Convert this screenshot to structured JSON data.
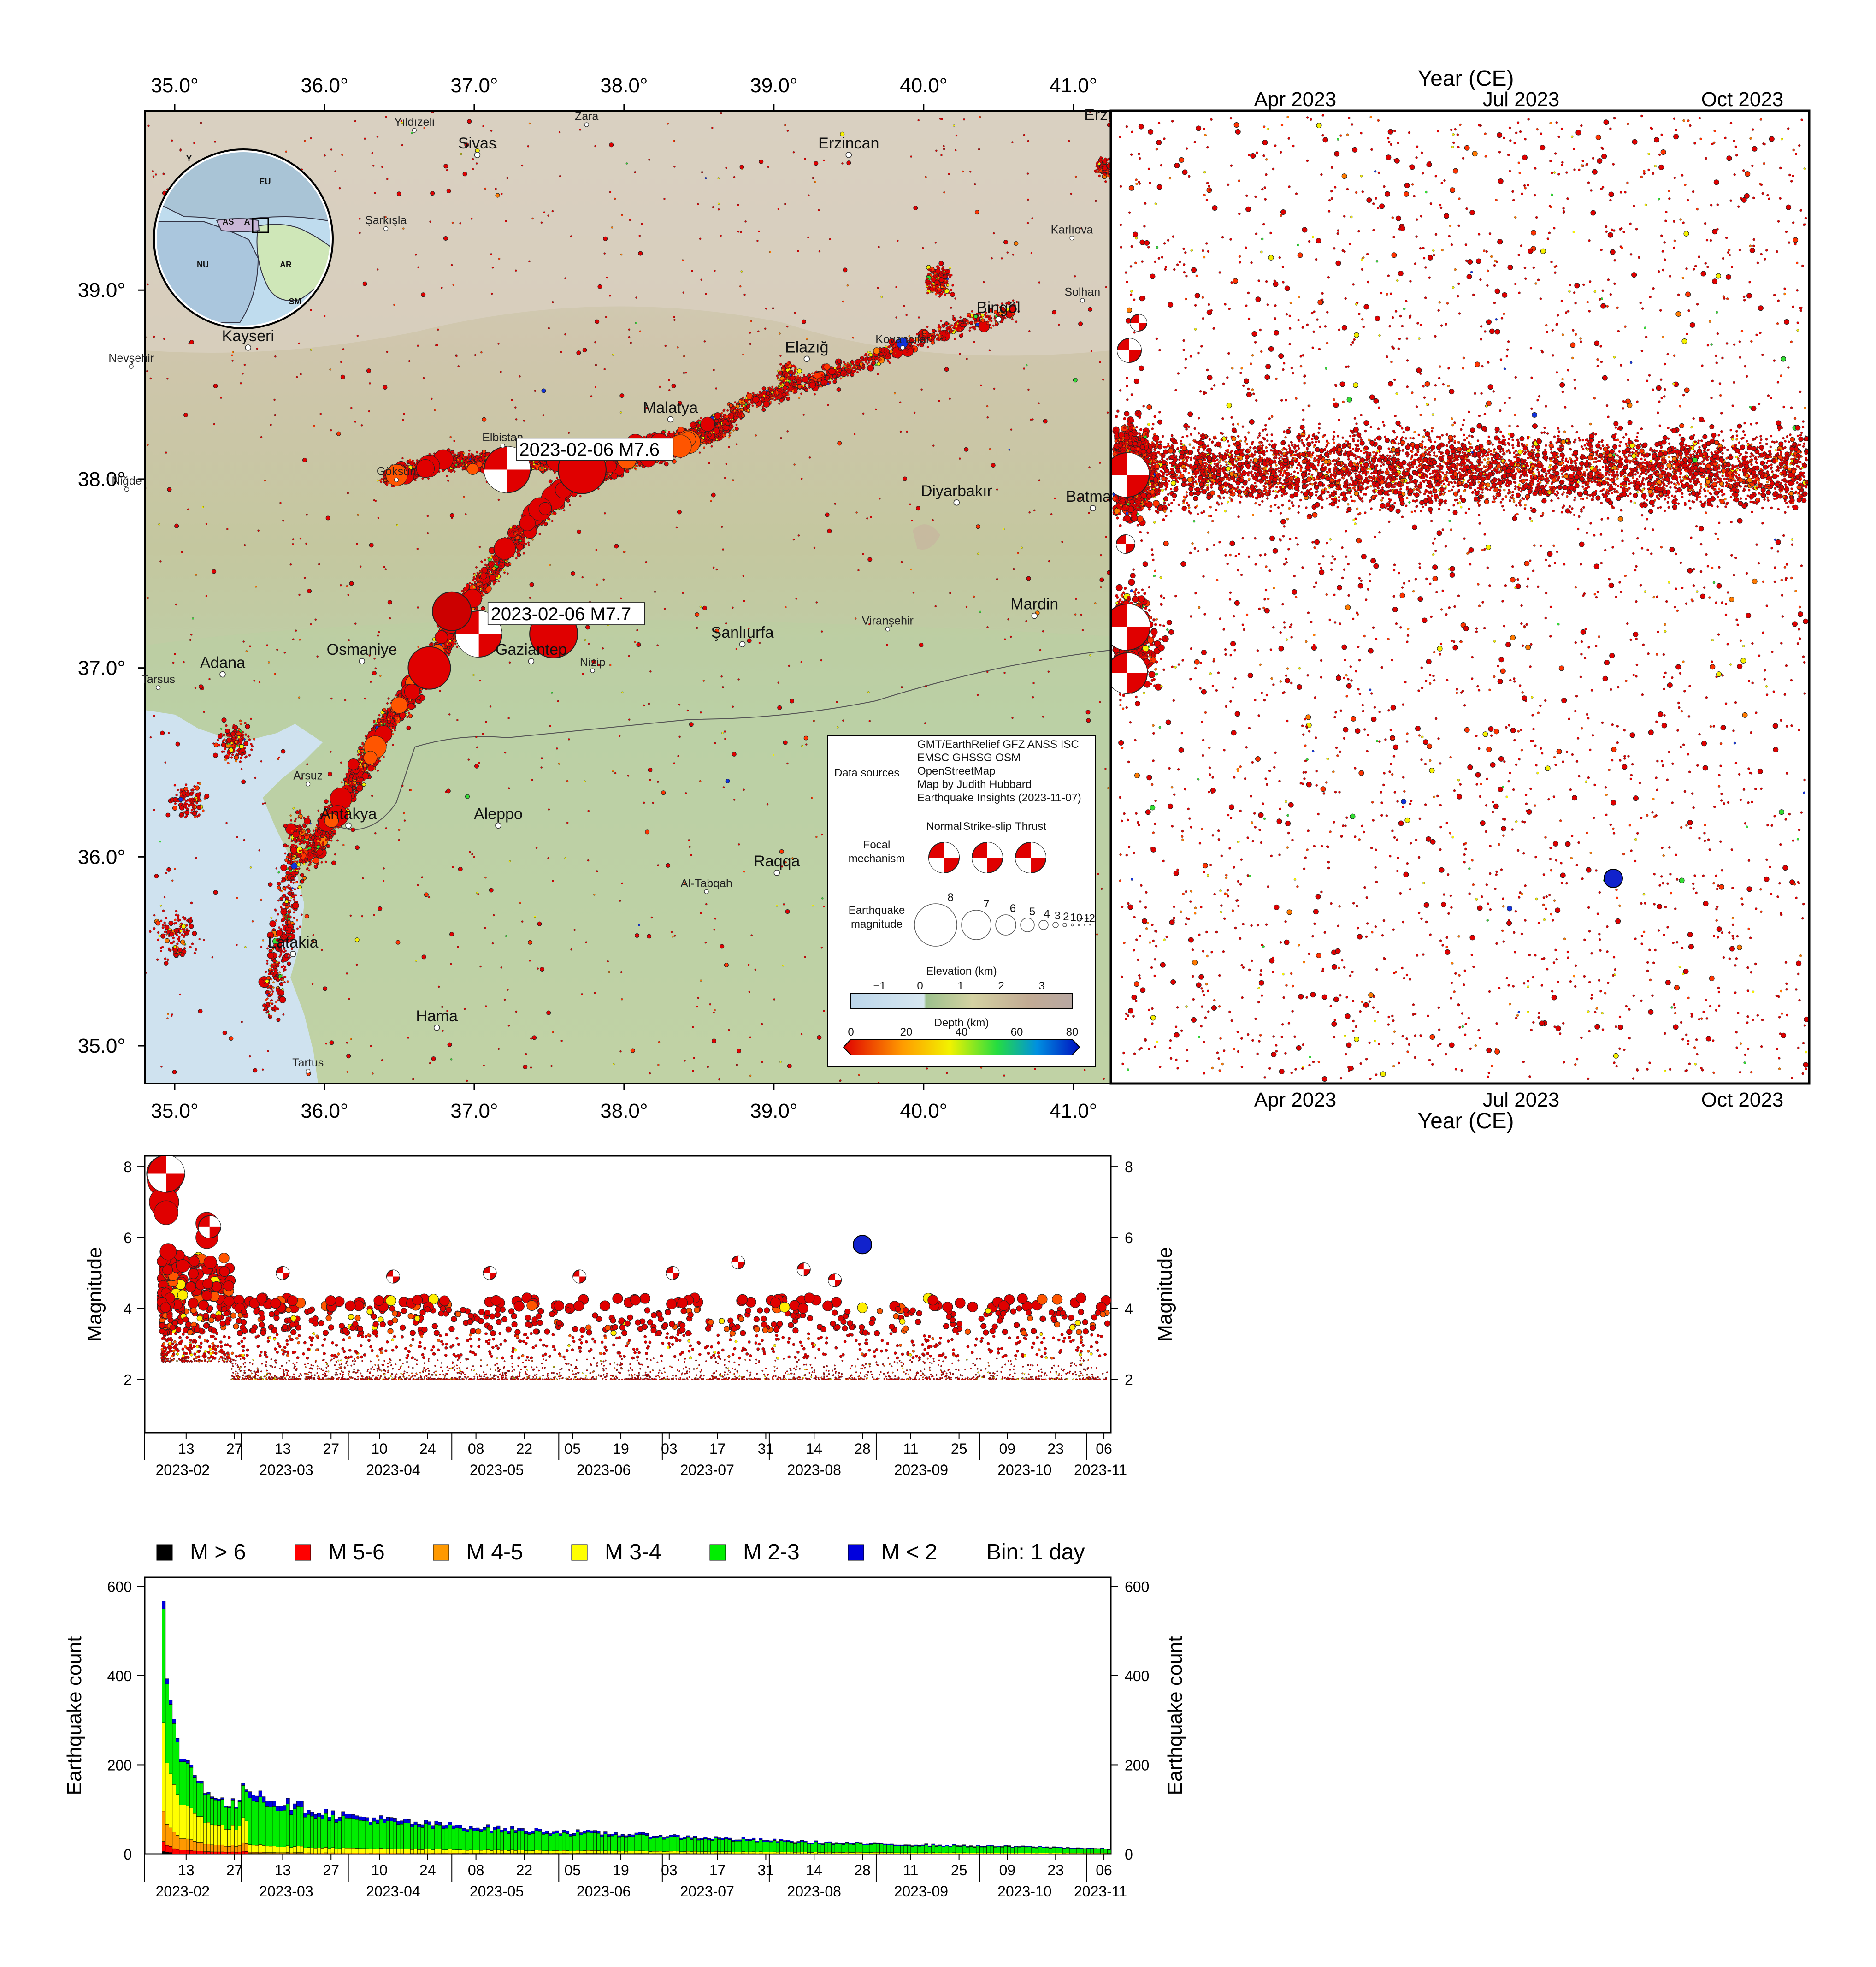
{
  "map": {
    "lon_ticks_top": [
      "35.0°",
      "36.0°",
      "37.0°",
      "38.0°",
      "39.0°",
      "40.0°",
      "41.0°"
    ],
    "lon_ticks_bottom": [
      "35.0°",
      "36.0°",
      "37.0°",
      "38.0°",
      "39.0°",
      "40.0°",
      "41.0°"
    ],
    "lat_ticks": [
      "39.0°",
      "38.0°",
      "37.0°",
      "36.0°",
      "35.0°"
    ],
    "lon_range": [
      34.8,
      41.25
    ],
    "lat_range": [
      34.8,
      39.95
    ],
    "mainshocks": [
      {
        "label": "2023-02-06 M7.6",
        "lon": 37.22,
        "lat": 38.05,
        "mag": 7.6
      },
      {
        "label": "2023-02-06 M7.7",
        "lon": 37.03,
        "lat": 37.18,
        "mag": 7.7
      }
    ],
    "cities_large": [
      {
        "name": "Sivas",
        "lon": 37.02,
        "lat": 39.75
      },
      {
        "name": "Erzincan",
        "lon": 39.5,
        "lat": 39.75
      },
      {
        "name": "Erzurum",
        "lon": 41.27,
        "lat": 39.9
      },
      {
        "name": "Kayseri",
        "lon": 35.49,
        "lat": 38.73
      },
      {
        "name": "Elazığ",
        "lon": 39.22,
        "lat": 38.67
      },
      {
        "name": "Bingöl",
        "lon": 40.5,
        "lat": 38.88
      },
      {
        "name": "Malatya",
        "lon": 38.31,
        "lat": 38.35
      },
      {
        "name": "Diyarbakır",
        "lon": 40.22,
        "lat": 37.91
      },
      {
        "name": "Batman",
        "lon": 41.13,
        "lat": 37.88
      },
      {
        "name": "Mardin",
        "lon": 40.74,
        "lat": 37.31
      },
      {
        "name": "Şanlıurfa",
        "lon": 38.79,
        "lat": 37.16
      },
      {
        "name": "Gaziantep",
        "lon": 37.38,
        "lat": 37.07
      },
      {
        "name": "Osmaniye",
        "lon": 36.25,
        "lat": 37.07
      },
      {
        "name": "Adana",
        "lon": 35.32,
        "lat": 37.0
      },
      {
        "name": "Antakya",
        "lon": 36.16,
        "lat": 36.2
      },
      {
        "name": "Aleppo",
        "lon": 37.16,
        "lat": 36.2
      },
      {
        "name": "Latakia",
        "lon": 35.79,
        "lat": 35.52
      },
      {
        "name": "Hama",
        "lon": 36.75,
        "lat": 35.13
      },
      {
        "name": "Raqqa",
        "lon": 39.02,
        "lat": 35.95
      }
    ],
    "cities_small": [
      {
        "name": "Yıldızeli",
        "lon": 36.6,
        "lat": 39.87
      },
      {
        "name": "Zara",
        "lon": 37.75,
        "lat": 39.9
      },
      {
        "name": "Şarkışla",
        "lon": 36.41,
        "lat": 39.35
      },
      {
        "name": "Karlıova",
        "lon": 40.99,
        "lat": 39.3
      },
      {
        "name": "Solhan",
        "lon": 41.06,
        "lat": 38.97
      },
      {
        "name": "Kovancılar",
        "lon": 39.86,
        "lat": 38.72
      },
      {
        "name": "Nevşehir",
        "lon": 34.71,
        "lat": 38.62
      },
      {
        "name": "Elbistan",
        "lon": 37.19,
        "lat": 38.2
      },
      {
        "name": "Göksun",
        "lon": 36.48,
        "lat": 38.02
      },
      {
        "name": "Niğde",
        "lon": 34.68,
        "lat": 37.97
      },
      {
        "name": "Viranşehir",
        "lon": 39.76,
        "lat": 37.23
      },
      {
        "name": "Nizip",
        "lon": 37.79,
        "lat": 37.01
      },
      {
        "name": "Tarsus",
        "lon": 34.89,
        "lat": 36.92
      },
      {
        "name": "Arsuz",
        "lon": 35.89,
        "lat": 36.41
      },
      {
        "name": "Al-Tabqah",
        "lon": 38.55,
        "lat": 35.84
      },
      {
        "name": "Tartus",
        "lon": 35.89,
        "lat": 34.89
      }
    ],
    "inset_labels": [
      "EU",
      "AS",
      "A",
      "NU",
      "AR",
      "SM",
      "Y"
    ]
  },
  "legend_box": {
    "data_sources_label": "Data sources",
    "sources_lines": [
      "GMT/EarthRelief GFZ ANSS ISC",
      "EMSC GHSSG OSM",
      "OpenStreetMap",
      "Map by Judith Hubbard",
      "Earthquake Insights (2023-11-07)"
    ],
    "focal_label_1": "Focal",
    "focal_label_2": "mechanism",
    "focal_types": [
      "Normal",
      "Strike-slip",
      "Thrust"
    ],
    "mag_label_1": "Earthquake",
    "mag_label_2": "magnitude",
    "mag_values": [
      "8",
      "7",
      "6",
      "5",
      "4",
      "3",
      "2",
      "1",
      "0",
      "-1",
      "-2"
    ],
    "elevation_title": "Elevation (km)",
    "elevation_ticks": [
      "−1",
      "0",
      "1",
      "2",
      "3"
    ],
    "depth_title": "Depth (km)",
    "depth_ticks": [
      "0",
      "20",
      "40",
      "60",
      "80"
    ]
  },
  "time_panel": {
    "title_top": "Year (CE)",
    "title_bottom": "Year (CE)",
    "ticks_top": [
      "Apr 2023",
      "Jul 2023",
      "Oct 2023"
    ],
    "ticks_bottom": [
      "Apr 2023",
      "Jul 2023",
      "Oct 2023"
    ]
  },
  "magnitude_panel": {
    "ylabel_left": "Magnitude",
    "ylabel_right": "Magnitude",
    "yticks": [
      "8",
      "6",
      "4",
      "2"
    ],
    "day_ticks": [
      "13",
      "27",
      "13",
      "27",
      "10",
      "24",
      "08",
      "22",
      "05",
      "19",
      "03",
      "17",
      "31",
      "14",
      "28",
      "11",
      "25",
      "09",
      "23",
      "06"
    ],
    "month_ticks": [
      "2023-02",
      "2023-03",
      "2023-04",
      "2023-05",
      "2023-06",
      "2023-07",
      "2023-08",
      "2023-09",
      "2023-10",
      "2023-11"
    ]
  },
  "chart_data": {
    "type": "bar",
    "title": "",
    "xlabel": "",
    "ylabel": "Earthquake count",
    "ylabel_right": "Earthquake count",
    "ylim": [
      0,
      620
    ],
    "yticks": [
      "600",
      "400",
      "200",
      "0"
    ],
    "day_ticks": [
      "13",
      "27",
      "13",
      "27",
      "10",
      "24",
      "08",
      "22",
      "05",
      "19",
      "03",
      "17",
      "31",
      "14",
      "28",
      "11",
      "25",
      "09",
      "23",
      "06"
    ],
    "month_ticks": [
      "2023-02",
      "2023-03",
      "2023-04",
      "2023-05",
      "2023-06",
      "2023-07",
      "2023-08",
      "2023-09",
      "2023-10",
      "2023-11"
    ],
    "x_range": [
      "2023-02-01",
      "2023-11-08"
    ],
    "bin_label": "Bin: 1 day",
    "legend": [
      {
        "label": "M > 6",
        "color": "#000000"
      },
      {
        "label": "M 5-6",
        "color": "#ff0000"
      },
      {
        "label": "M 4-5",
        "color": "#ff9900"
      },
      {
        "label": "M 3-4",
        "color": "#ffff00"
      },
      {
        "label": "M 2-3",
        "color": "#00ee00"
      },
      {
        "label": "M < 2",
        "color": "#0000dd"
      }
    ],
    "total_daily_profile": [
      {
        "date": "2023-02-06",
        "value": 600
      },
      {
        "date": "2023-02-07",
        "value": 365
      },
      {
        "date": "2023-02-08",
        "value": 320
      },
      {
        "date": "2023-02-10",
        "value": 250
      },
      {
        "date": "2023-02-15",
        "value": 180
      },
      {
        "date": "2023-02-22",
        "value": 120
      },
      {
        "date": "2023-02-28",
        "value": 110
      },
      {
        "date": "2023-03-01",
        "value": 160
      },
      {
        "date": "2023-03-10",
        "value": 120
      },
      {
        "date": "2023-03-27",
        "value": 90
      },
      {
        "date": "2023-04-20",
        "value": 70
      },
      {
        "date": "2023-05-20",
        "value": 55
      },
      {
        "date": "2023-06-20",
        "value": 45
      },
      {
        "date": "2023-07-20",
        "value": 35
      },
      {
        "date": "2023-08-20",
        "value": 25
      },
      {
        "date": "2023-09-20",
        "value": 20
      },
      {
        "date": "2023-10-20",
        "value": 16
      },
      {
        "date": "2023-11-06",
        "value": 12
      }
    ]
  }
}
